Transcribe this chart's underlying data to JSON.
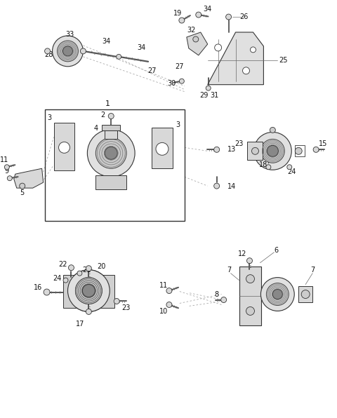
{
  "bg_color": "#ffffff",
  "lc": "#404040",
  "lc_dark": "#222222",
  "lc_light": "#888888",
  "fig_width": 4.8,
  "fig_height": 5.96,
  "dpi": 100,
  "label_fontsize": 7.0
}
